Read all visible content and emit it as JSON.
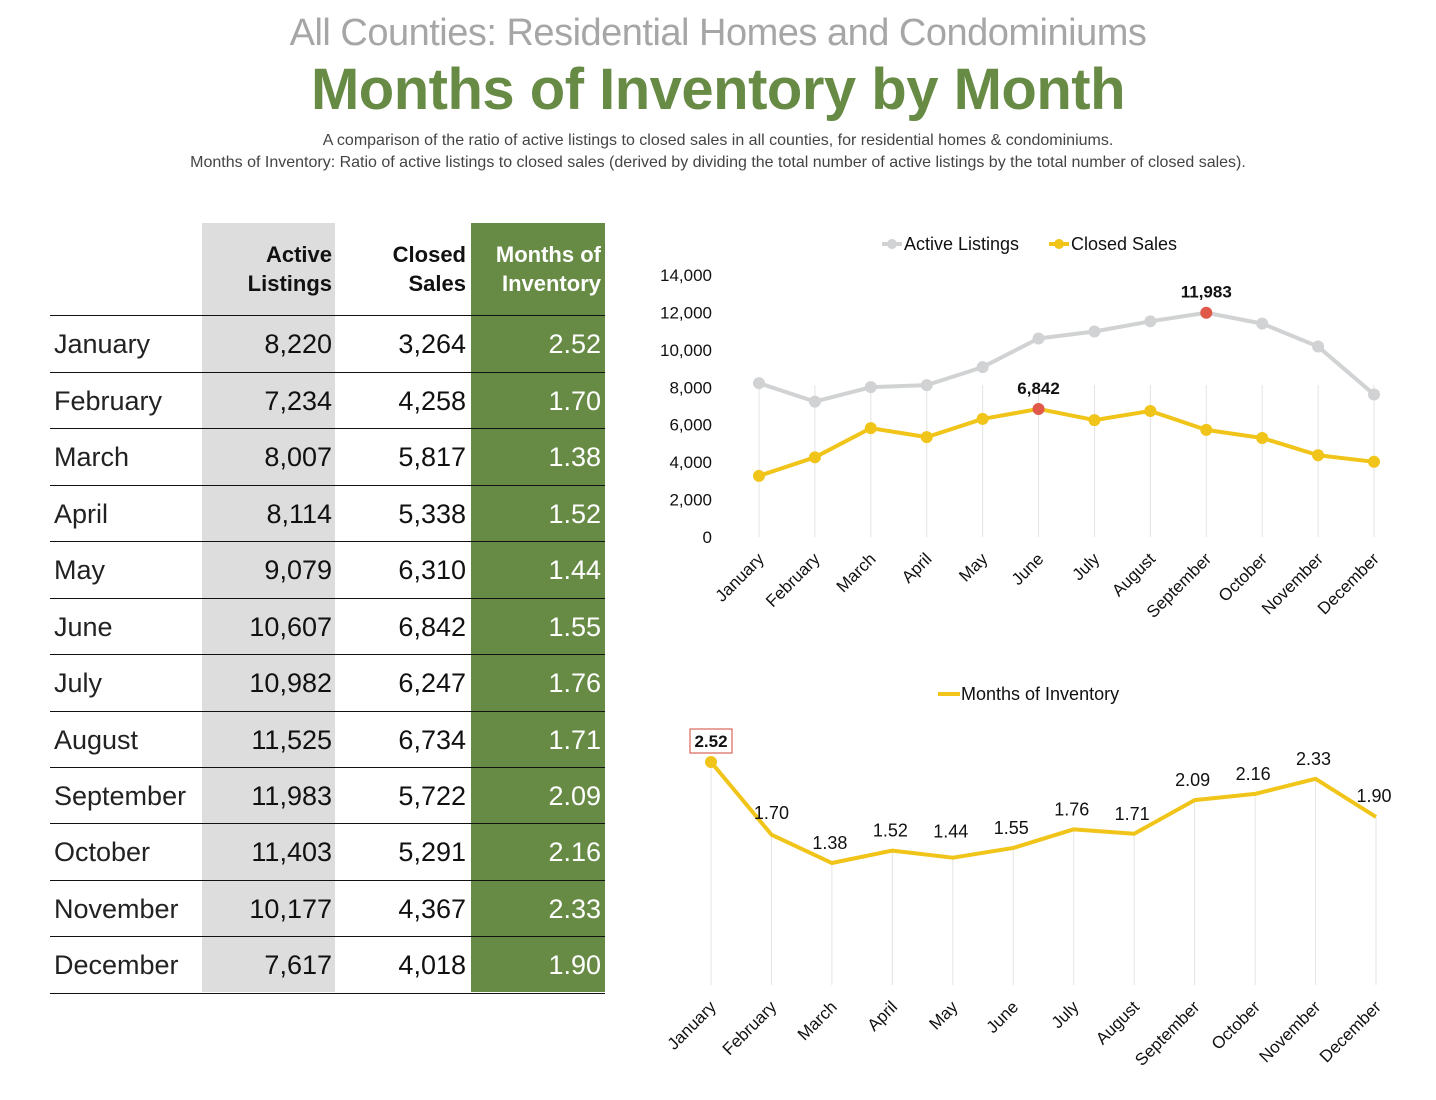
{
  "header": {
    "subtitle": "All Counties: Residential Homes and Condominiums",
    "title": "Months of Inventory by Month",
    "description_line1": "A comparison of the ratio of active listings to closed sales in all counties, for residential homes & condominiums.",
    "description_line2": "Months of Inventory: Ratio of active listings to closed sales (derived by dividing the total number of active listings by the total number of closed sales)."
  },
  "table": {
    "headers": {
      "active": "Active\nListings",
      "closed": "Closed\nSales",
      "moi": "Months of\nInventory"
    },
    "rows": [
      {
        "month": "January",
        "active": "8,220",
        "closed": "3,264",
        "moi": "2.52"
      },
      {
        "month": "February",
        "active": "7,234",
        "closed": "4,258",
        "moi": "1.70"
      },
      {
        "month": "March",
        "active": "8,007",
        "closed": "5,817",
        "moi": "1.38"
      },
      {
        "month": "April",
        "active": "8,114",
        "closed": "5,338",
        "moi": "1.52"
      },
      {
        "month": "May",
        "active": "9,079",
        "closed": "6,310",
        "moi": "1.44"
      },
      {
        "month": "June",
        "active": "10,607",
        "closed": "6,842",
        "moi": "1.55"
      },
      {
        "month": "July",
        "active": "10,982",
        "closed": "6,247",
        "moi": "1.76"
      },
      {
        "month": "August",
        "active": "11,525",
        "closed": "6,734",
        "moi": "1.71"
      },
      {
        "month": "September",
        "active": "11,983",
        "closed": "5,722",
        "moi": "2.09"
      },
      {
        "month": "October",
        "active": "11,403",
        "closed": "5,291",
        "moi": "2.16"
      },
      {
        "month": "November",
        "active": "10,177",
        "closed": "4,367",
        "moi": "2.33"
      },
      {
        "month": "December",
        "active": "7,617",
        "closed": "4,018",
        "moi": "1.90"
      }
    ]
  },
  "colors": {
    "green": "#678b45",
    "gray_column": "#dcdddc",
    "active_line": "#d0d2d3",
    "closed_line": "#f0c419",
    "highlight_marker": "#e0584a"
  },
  "chart_data": [
    {
      "type": "line",
      "title": "",
      "categories": [
        "January",
        "February",
        "March",
        "April",
        "May",
        "June",
        "July",
        "August",
        "September",
        "October",
        "November",
        "December"
      ],
      "series": [
        {
          "name": "Active Listings",
          "values": [
            8220,
            7234,
            8007,
            8114,
            9079,
            10607,
            10982,
            11525,
            11983,
            11403,
            10177,
            7617
          ],
          "color": "#d0d2d3",
          "highlight": {
            "index": 8,
            "label": "11,983"
          }
        },
        {
          "name": "Closed Sales",
          "values": [
            3264,
            4258,
            5817,
            5338,
            6310,
            6842,
            6247,
            6734,
            5722,
            5291,
            4367,
            4018
          ],
          "color": "#f0c419",
          "highlight": {
            "index": 5,
            "label": "6,842"
          }
        }
      ],
      "yticks": [
        "0",
        "2,000",
        "4,000",
        "6,000",
        "8,000",
        "10,000",
        "12,000",
        "14,000"
      ],
      "ylim": [
        0,
        14000
      ],
      "xlabel": "",
      "ylabel": "",
      "legend": "top-center",
      "grid": "vertical"
    },
    {
      "type": "line",
      "title": "",
      "categories": [
        "January",
        "February",
        "March",
        "April",
        "May",
        "June",
        "July",
        "August",
        "September",
        "October",
        "November",
        "December"
      ],
      "series": [
        {
          "name": "Months of Inventory",
          "values": [
            2.52,
            1.7,
            1.38,
            1.52,
            1.44,
            1.55,
            1.76,
            1.71,
            2.09,
            2.16,
            2.33,
            1.9
          ],
          "color": "#f0c419",
          "labels": [
            "2.52",
            "1.70",
            "1.38",
            "1.52",
            "1.44",
            "1.55",
            "1.76",
            "1.71",
            "2.09",
            "2.16",
            "2.33",
            "1.90"
          ],
          "highlight": {
            "index": 0
          }
        }
      ],
      "xlabel": "",
      "ylabel": "",
      "legend": "top-center",
      "grid": "vertical"
    }
  ]
}
